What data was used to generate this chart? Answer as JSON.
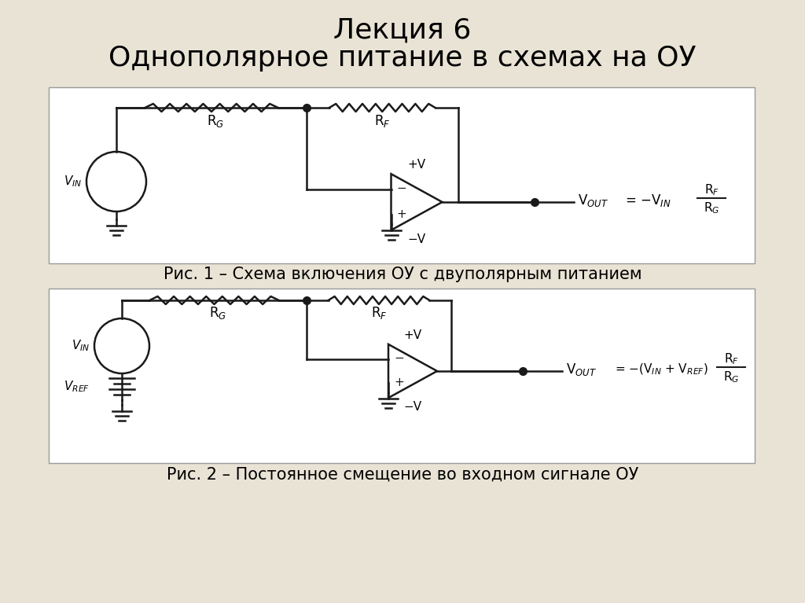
{
  "title_line1": "Лекция 6",
  "title_line2": "Однополярное питание в схемах на ОУ",
  "bg_color": "#e8e3d5",
  "diagram_bg": "#ffffff",
  "fig1_caption": "Рис. 1 – Схема включения ОУ с двуполярным питанием",
  "fig2_caption": "Рис. 2 – Постоянное смещение во входном сигнале ОУ",
  "title_fontsize": 26,
  "caption_fontsize": 15,
  "line_color": "#1a1a1a",
  "line_width": 1.8
}
